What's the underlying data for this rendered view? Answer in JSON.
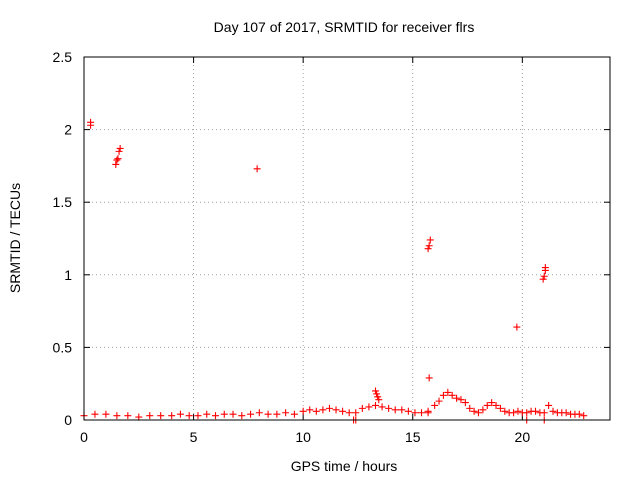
{
  "chart_data": {
    "type": "scatter",
    "title": "Day 107 of 2017, SRMTID for receiver flrs",
    "xlabel": "GPS time / hours",
    "ylabel": "SRMTID / TECUs",
    "xlim": [
      0,
      24
    ],
    "ylim": [
      0,
      2.5
    ],
    "x_ticks": [
      0,
      5,
      10,
      15,
      20
    ],
    "x_tick_labels": [
      "0",
      "5",
      "10",
      "15",
      "20"
    ],
    "y_ticks": [
      0,
      0.5,
      1,
      1.5,
      2,
      2.5
    ],
    "y_tick_labels": [
      "0",
      "0.5",
      "1",
      "1.5",
      "2",
      "2.5"
    ],
    "grid": true,
    "marker": "+",
    "series": [
      {
        "name": "SRMTID",
        "color": "#ff0000",
        "x": [
          0.3,
          0.3,
          1.45,
          1.5,
          1.55,
          1.6,
          1.65,
          7.9,
          15.7,
          15.75,
          15.8,
          15.75,
          19.75,
          20.95,
          21.0,
          21.05,
          21.05,
          15.7,
          13.3,
          13.35,
          13.4,
          13.45,
          0.0,
          0.5,
          1.0,
          1.5,
          2.0,
          2.5,
          3.0,
          3.5,
          4.0,
          4.4,
          4.8,
          5.2,
          5.6,
          6.0,
          6.4,
          6.8,
          7.2,
          7.6,
          8.0,
          8.4,
          8.8,
          9.2,
          9.6,
          10.0,
          10.3,
          10.6,
          10.9,
          11.2,
          11.5,
          11.8,
          12.1,
          12.4,
          12.7,
          13.0,
          13.3,
          13.6,
          13.9,
          14.2,
          14.5,
          14.8,
          15.1,
          15.4,
          15.7,
          16.0,
          16.2,
          16.4,
          16.6,
          16.8,
          17.0,
          17.2,
          17.4,
          17.6,
          17.8,
          18.0,
          18.2,
          18.4,
          18.6,
          18.8,
          19.0,
          19.2,
          19.4,
          19.6,
          19.8,
          20.0,
          20.2,
          20.4,
          20.6,
          20.8,
          21.0,
          21.2,
          21.4,
          21.6,
          21.8,
          22.0,
          22.2,
          22.4,
          22.6,
          22.8,
          12.3,
          12.4,
          20.2,
          21.0
        ],
        "y": [
          2.05,
          2.03,
          1.76,
          1.79,
          1.8,
          1.85,
          1.87,
          1.73,
          1.18,
          1.2,
          1.24,
          0.29,
          0.64,
          0.97,
          0.99,
          1.03,
          1.05,
          0.05,
          0.2,
          0.18,
          0.16,
          0.14,
          0.03,
          0.04,
          0.04,
          0.03,
          0.03,
          0.02,
          0.03,
          0.03,
          0.03,
          0.04,
          0.03,
          0.03,
          0.04,
          0.03,
          0.04,
          0.04,
          0.03,
          0.04,
          0.05,
          0.04,
          0.04,
          0.05,
          0.04,
          0.06,
          0.07,
          0.06,
          0.07,
          0.08,
          0.07,
          0.06,
          0.05,
          0.05,
          0.08,
          0.09,
          0.1,
          0.09,
          0.08,
          0.07,
          0.07,
          0.06,
          0.05,
          0.05,
          0.06,
          0.1,
          0.13,
          0.17,
          0.19,
          0.17,
          0.15,
          0.14,
          0.12,
          0.08,
          0.06,
          0.05,
          0.07,
          0.1,
          0.12,
          0.1,
          0.08,
          0.06,
          0.05,
          0.05,
          0.06,
          0.05,
          0.05,
          0.06,
          0.06,
          0.05,
          0.05,
          0.1,
          0.06,
          0.05,
          0.05,
          0.05,
          0.04,
          0.04,
          0.04,
          0.03,
          0.0,
          0.0,
          0.0,
          0.0
        ]
      }
    ]
  }
}
